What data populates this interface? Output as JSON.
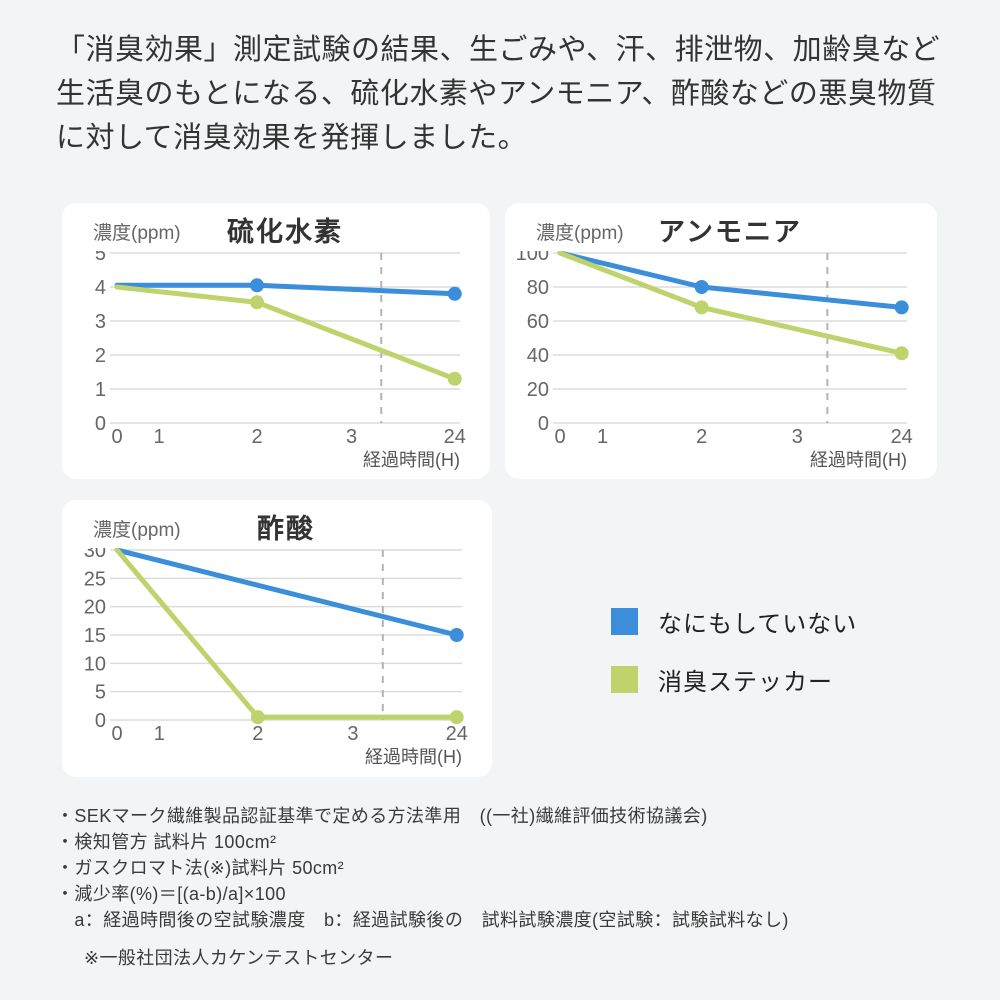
{
  "intro_text": "「消臭効果」測定試験の結果、生ごみや、汗、排泄物、加齢臭など生活臭のもとになる、硫化水素やアンモニア、酢酸などの悪臭物質に対して消臭効果を発揮しました。",
  "colors": {
    "blue": "#3B8EDA",
    "green": "#BED36B",
    "grid": "#DCDCDC",
    "dash": "#B3B3B3",
    "tick_text": "#666666",
    "axis_label_text": "#555555",
    "card_bg": "#FFFFFF",
    "page_bg": "#F3F4F5"
  },
  "legend": {
    "items": [
      {
        "label": "なにもしていない",
        "color_key": "blue"
      },
      {
        "label": "消臭ステッカー",
        "color_key": "green"
      }
    ]
  },
  "chart_data": [
    {
      "id": "hydrogen-sulfide",
      "type": "line",
      "title": "硫化水素",
      "ylabel": "濃度(ppm)",
      "xlabel": "経過時間(H)",
      "x_tick_labels": [
        "0",
        "1",
        "2",
        "3",
        "24"
      ],
      "y_ticks": [
        5,
        4,
        3,
        2,
        1,
        0
      ],
      "ylim": [
        0,
        5
      ],
      "grid": true,
      "time_break_line": true,
      "series": [
        {
          "name": "なにもしていない",
          "color_key": "blue",
          "points": [
            [
              0,
              4.05
            ],
            [
              2,
              4.05
            ],
            [
              24,
              3.8
            ]
          ],
          "marker_at": [
            2,
            24
          ]
        },
        {
          "name": "消臭ステッカー",
          "color_key": "green",
          "points": [
            [
              0,
              4.0
            ],
            [
              2,
              3.55
            ],
            [
              24,
              1.3
            ]
          ],
          "marker_at": [
            2,
            24
          ]
        }
      ]
    },
    {
      "id": "ammonia",
      "type": "line",
      "title": "アンモニア",
      "ylabel": "濃度(ppm)",
      "xlabel": "経過時間(H)",
      "x_tick_labels": [
        "0",
        "1",
        "2",
        "3",
        "24"
      ],
      "y_ticks": [
        100,
        80,
        60,
        40,
        20,
        0
      ],
      "ylim": [
        0,
        100
      ],
      "grid": true,
      "time_break_line": true,
      "series": [
        {
          "name": "なにもしていない",
          "color_key": "blue",
          "points": [
            [
              0,
              100
            ],
            [
              2,
              80
            ],
            [
              24,
              68
            ]
          ],
          "marker_at": [
            2,
            24
          ]
        },
        {
          "name": "消臭ステッカー",
          "color_key": "green",
          "points": [
            [
              0,
              100
            ],
            [
              2,
              68
            ],
            [
              24,
              41
            ]
          ],
          "marker_at": [
            2,
            24
          ]
        }
      ]
    },
    {
      "id": "acetic-acid",
      "type": "line",
      "title": "酢酸",
      "ylabel": "濃度(ppm)",
      "xlabel": "経過時間(H)",
      "x_tick_labels": [
        "0",
        "1",
        "2",
        "3",
        "24"
      ],
      "y_ticks": [
        30,
        25,
        20,
        15,
        10,
        5,
        0
      ],
      "ylim": [
        0,
        30
      ],
      "grid": true,
      "time_break_line": true,
      "series": [
        {
          "name": "なにもしていない",
          "color_key": "blue",
          "points": [
            [
              0,
              30
            ],
            [
              24,
              15
            ]
          ],
          "marker_at": [
            24
          ]
        },
        {
          "name": "消臭ステッカー",
          "color_key": "green",
          "points": [
            [
              0,
              30
            ],
            [
              2,
              0.5
            ],
            [
              24,
              0.5
            ]
          ],
          "marker_at": [
            2,
            24
          ]
        }
      ]
    }
  ],
  "notes": [
    "・SEKマーク繊維製品認証基準で定める方法準用　((一社)繊維評価技術協議会)",
    "・検知管方 試料片 100cm²",
    "・ガスクロマト法(※)試料片 50cm²",
    "・減少率(%)＝[(a-b)/a]×100",
    "　a：経過時間後の空試験濃度　b：経過試験後の　試料試験濃度(空試験：試験試料なし)"
  ],
  "footnote": "※一般社団法人カケンテストセンター"
}
